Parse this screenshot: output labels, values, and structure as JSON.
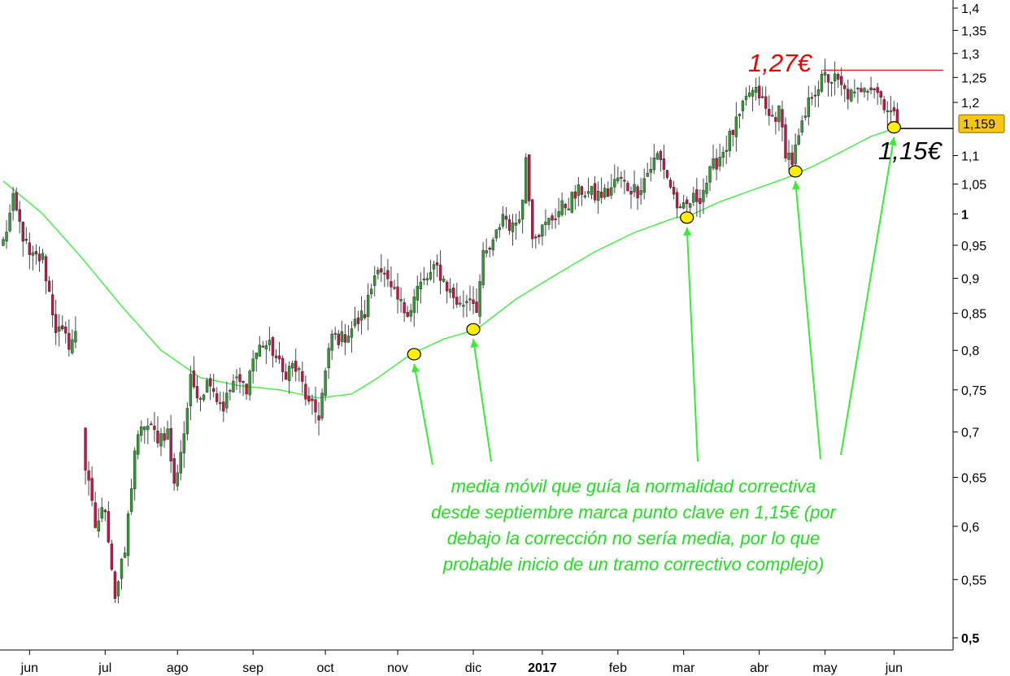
{
  "chart_data": {
    "type": "candlestick",
    "y_scale": "log",
    "ylim": [
      0.49,
      1.41
    ],
    "y_ticks": [
      {
        "value": 1.4,
        "label": "1,4"
      },
      {
        "value": 1.35,
        "label": "1,35"
      },
      {
        "value": 1.3,
        "label": "1,3"
      },
      {
        "value": 1.25,
        "label": "1,25"
      },
      {
        "value": 1.2,
        "label": "1,2"
      },
      {
        "value": 1.1,
        "label": "1,1"
      },
      {
        "value": 1.05,
        "label": "1,05"
      },
      {
        "value": 1.0,
        "label": "1",
        "bold": true
      },
      {
        "value": 0.95,
        "label": "0,95"
      },
      {
        "value": 0.9,
        "label": "0,9"
      },
      {
        "value": 0.85,
        "label": "0,85"
      },
      {
        "value": 0.8,
        "label": "0,8"
      },
      {
        "value": 0.75,
        "label": "0,75"
      },
      {
        "value": 0.7,
        "label": "0,7"
      },
      {
        "value": 0.65,
        "label": "0,65"
      },
      {
        "value": 0.6,
        "label": "0,6"
      },
      {
        "value": 0.55,
        "label": "0,55"
      },
      {
        "value": 0.5,
        "label": "0,5",
        "bold": true
      }
    ],
    "x_labels": [
      {
        "label": "jun",
        "index": 8
      },
      {
        "label": "jul",
        "index": 31
      },
      {
        "label": "ago",
        "index": 53
      },
      {
        "label": "sep",
        "index": 76
      },
      {
        "label": "oct",
        "index": 98
      },
      {
        "label": "nov",
        "index": 120
      },
      {
        "label": "dic",
        "index": 143
      },
      {
        "label": "2017",
        "index": 164,
        "bold": true
      },
      {
        "label": "feb",
        "index": 187
      },
      {
        "label": "mar",
        "index": 207
      },
      {
        "label": "abr",
        "index": 230
      },
      {
        "label": "may",
        "index": 250
      },
      {
        "label": "jun",
        "index": 271
      }
    ],
    "x_count": 286,
    "colors": {
      "up": "#2e9e2e",
      "down": "#cc1144",
      "moving_average": "#33ee33",
      "marker_fill": "#ffee00",
      "last_price_bg": "#f5c518",
      "resistance": "#ee0000"
    },
    "anchors": [
      [
        0,
        0.955
      ],
      [
        3,
        1.02
      ],
      [
        8,
        0.93
      ],
      [
        12,
        0.93
      ],
      [
        16,
        0.83
      ],
      [
        20,
        0.81
      ],
      [
        22,
        0.82
      ],
      [
        25,
        0.66
      ],
      [
        28,
        0.6
      ],
      [
        31,
        0.62
      ],
      [
        34,
        0.535
      ],
      [
        37,
        0.575
      ],
      [
        40,
        0.68
      ],
      [
        43,
        0.71
      ],
      [
        47,
        0.695
      ],
      [
        50,
        0.7
      ],
      [
        52,
        0.64
      ],
      [
        55,
        0.7
      ],
      [
        57,
        0.76
      ],
      [
        60,
        0.745
      ],
      [
        63,
        0.765
      ],
      [
        65,
        0.74
      ],
      [
        67,
        0.73
      ],
      [
        70,
        0.76
      ],
      [
        74,
        0.755
      ],
      [
        76,
        0.79
      ],
      [
        79,
        0.81
      ],
      [
        82,
        0.8
      ],
      [
        85,
        0.77
      ],
      [
        88,
        0.78
      ],
      [
        90,
        0.77
      ],
      [
        93,
        0.73
      ],
      [
        96,
        0.72
      ],
      [
        98,
        0.77
      ],
      [
        100,
        0.82
      ],
      [
        103,
        0.815
      ],
      [
        106,
        0.83
      ],
      [
        110,
        0.85
      ],
      [
        114,
        0.925
      ],
      [
        118,
        0.88
      ],
      [
        122,
        0.855
      ],
      [
        124,
        0.86
      ],
      [
        126,
        0.885
      ],
      [
        129,
        0.9
      ],
      [
        132,
        0.915
      ],
      [
        136,
        0.88
      ],
      [
        139,
        0.86
      ],
      [
        142,
        0.875
      ],
      [
        144,
        0.86
      ],
      [
        146,
        0.93
      ],
      [
        149,
        0.95
      ],
      [
        152,
        1.0
      ],
      [
        155,
        0.975
      ],
      [
        158,
        1.02
      ],
      [
        159,
        1.1
      ],
      [
        161,
        0.97
      ],
      [
        164,
        0.975
      ],
      [
        168,
        1.0
      ],
      [
        172,
        1.02
      ],
      [
        176,
        1.04
      ],
      [
        180,
        1.03
      ],
      [
        184,
        1.035
      ],
      [
        187,
        1.06
      ],
      [
        190,
        1.045
      ],
      [
        193,
        1.04
      ],
      [
        196,
        1.07
      ],
      [
        199,
        1.1
      ],
      [
        201,
        1.08
      ],
      [
        204,
        1.03
      ],
      [
        206,
        1.0
      ],
      [
        209,
        1.02
      ],
      [
        212,
        1.03
      ],
      [
        216,
        1.08
      ],
      [
        220,
        1.12
      ],
      [
        224,
        1.17
      ],
      [
        227,
        1.22
      ],
      [
        230,
        1.215
      ],
      [
        233,
        1.17
      ],
      [
        236,
        1.18
      ],
      [
        238,
        1.11
      ],
      [
        240,
        1.09
      ],
      [
        243,
        1.15
      ],
      [
        246,
        1.22
      ],
      [
        250,
        1.25
      ],
      [
        253,
        1.245
      ],
      [
        256,
        1.22
      ],
      [
        259,
        1.21
      ],
      [
        262,
        1.24
      ],
      [
        265,
        1.23
      ],
      [
        268,
        1.2
      ],
      [
        270,
        1.18
      ],
      [
        272,
        1.159
      ]
    ],
    "moving_average": [
      [
        0,
        1.055
      ],
      [
        12,
        1.0
      ],
      [
        24,
        0.93
      ],
      [
        36,
        0.86
      ],
      [
        48,
        0.8
      ],
      [
        60,
        0.765
      ],
      [
        72,
        0.755
      ],
      [
        84,
        0.75
      ],
      [
        96,
        0.74
      ],
      [
        106,
        0.745
      ],
      [
        114,
        0.765
      ],
      [
        124,
        0.795
      ],
      [
        134,
        0.815
      ],
      [
        144,
        0.828
      ],
      [
        156,
        0.87
      ],
      [
        168,
        0.905
      ],
      [
        180,
        0.94
      ],
      [
        192,
        0.97
      ],
      [
        204,
        0.993
      ],
      [
        210,
        1.0
      ],
      [
        218,
        1.02
      ],
      [
        228,
        1.04
      ],
      [
        238,
        1.06
      ],
      [
        246,
        1.08
      ],
      [
        256,
        1.11
      ],
      [
        264,
        1.135
      ],
      [
        272,
        1.152
      ]
    ],
    "gap_range": [
      23,
      25
    ],
    "last_price": {
      "value": 1.159,
      "label": "1,159"
    },
    "support_level": 1.15,
    "resistance_level": {
      "value": 1.265,
      "from_index": 246,
      "to_index": 278
    },
    "touch_points": [
      {
        "index": 125,
        "value": 0.795,
        "arrow": true
      },
      {
        "index": 143,
        "value": 0.828,
        "arrow": true
      },
      {
        "index": 208,
        "value": 0.994,
        "arrow": true
      },
      {
        "index": 241,
        "value": 1.072,
        "arrow": true
      },
      {
        "index": 271,
        "value": 1.152,
        "arrow": true
      }
    ],
    "annotations": {
      "resistance_label": "1,27€",
      "support_label": "1,15€",
      "note_lines": [
        "media móvil que guía la normalidad correctiva",
        "desde septiembre marca punto clave en 1,15€ (por",
        "debajo la corrección no sería media, por lo que",
        "probable inicio de un tramo correctivo complejo)"
      ]
    }
  }
}
